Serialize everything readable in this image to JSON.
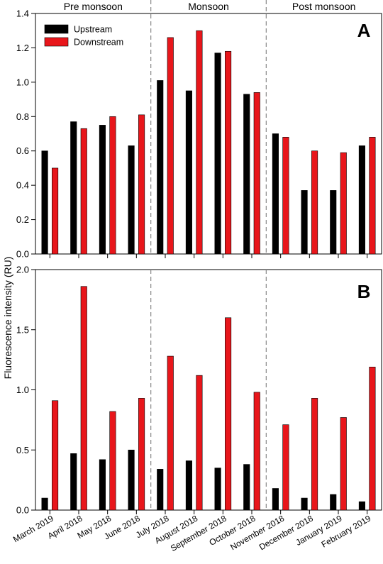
{
  "chart_data": [
    {
      "type": "bar",
      "panel_label": "A",
      "categories": [
        "March 2019",
        "April 2018",
        "May 2018",
        "June 2018",
        "July 2018",
        "August 2018",
        "September 2018",
        "October 2018",
        "November 2018",
        "December 2018",
        "January 2019",
        "February 2019"
      ],
      "series": [
        {
          "name": "Upstream",
          "color": "#000000",
          "values": [
            0.6,
            0.77,
            0.75,
            0.63,
            1.01,
            0.95,
            1.17,
            0.93,
            0.7,
            0.37,
            0.37,
            0.63
          ]
        },
        {
          "name": "Downstream",
          "color": "#e8161b",
          "values": [
            0.5,
            0.73,
            0.8,
            0.81,
            1.26,
            1.3,
            1.18,
            0.94,
            0.68,
            0.6,
            0.59,
            0.68
          ]
        }
      ],
      "ylim": [
        0,
        1.4
      ],
      "yticks": [
        "0.0",
        "0.2",
        "0.4",
        "0.6",
        "0.8",
        "1.0",
        "1.2",
        "1.4"
      ],
      "season_labels": [
        "Pre monsoon",
        "Monsoon",
        "Post monsoon"
      ],
      "legend": {
        "position": "top-left",
        "entries": [
          "Upstream",
          "Downstream"
        ]
      }
    },
    {
      "type": "bar",
      "panel_label": "B",
      "categories": [
        "March 2019",
        "April 2018",
        "May 2018",
        "June 2018",
        "July 2018",
        "August 2018",
        "September 2018",
        "October 2018",
        "November 2018",
        "December 2018",
        "January 2019",
        "February 2019"
      ],
      "series": [
        {
          "name": "Upstream",
          "color": "#000000",
          "values": [
            0.1,
            0.47,
            0.42,
            0.5,
            0.34,
            0.41,
            0.35,
            0.38,
            0.18,
            0.1,
            0.13,
            0.07
          ]
        },
        {
          "name": "Downstream",
          "color": "#e8161b",
          "values": [
            0.91,
            1.86,
            0.82,
            0.93,
            1.28,
            1.12,
            1.6,
            0.98,
            0.71,
            0.93,
            0.77,
            1.19
          ]
        }
      ],
      "ylim": [
        0,
        2.0
      ],
      "yticks": [
        "0.0",
        "0.5",
        "1.0",
        "1.5",
        "2.0"
      ]
    }
  ],
  "ylabel": "Fluorescence intensity (RU)"
}
